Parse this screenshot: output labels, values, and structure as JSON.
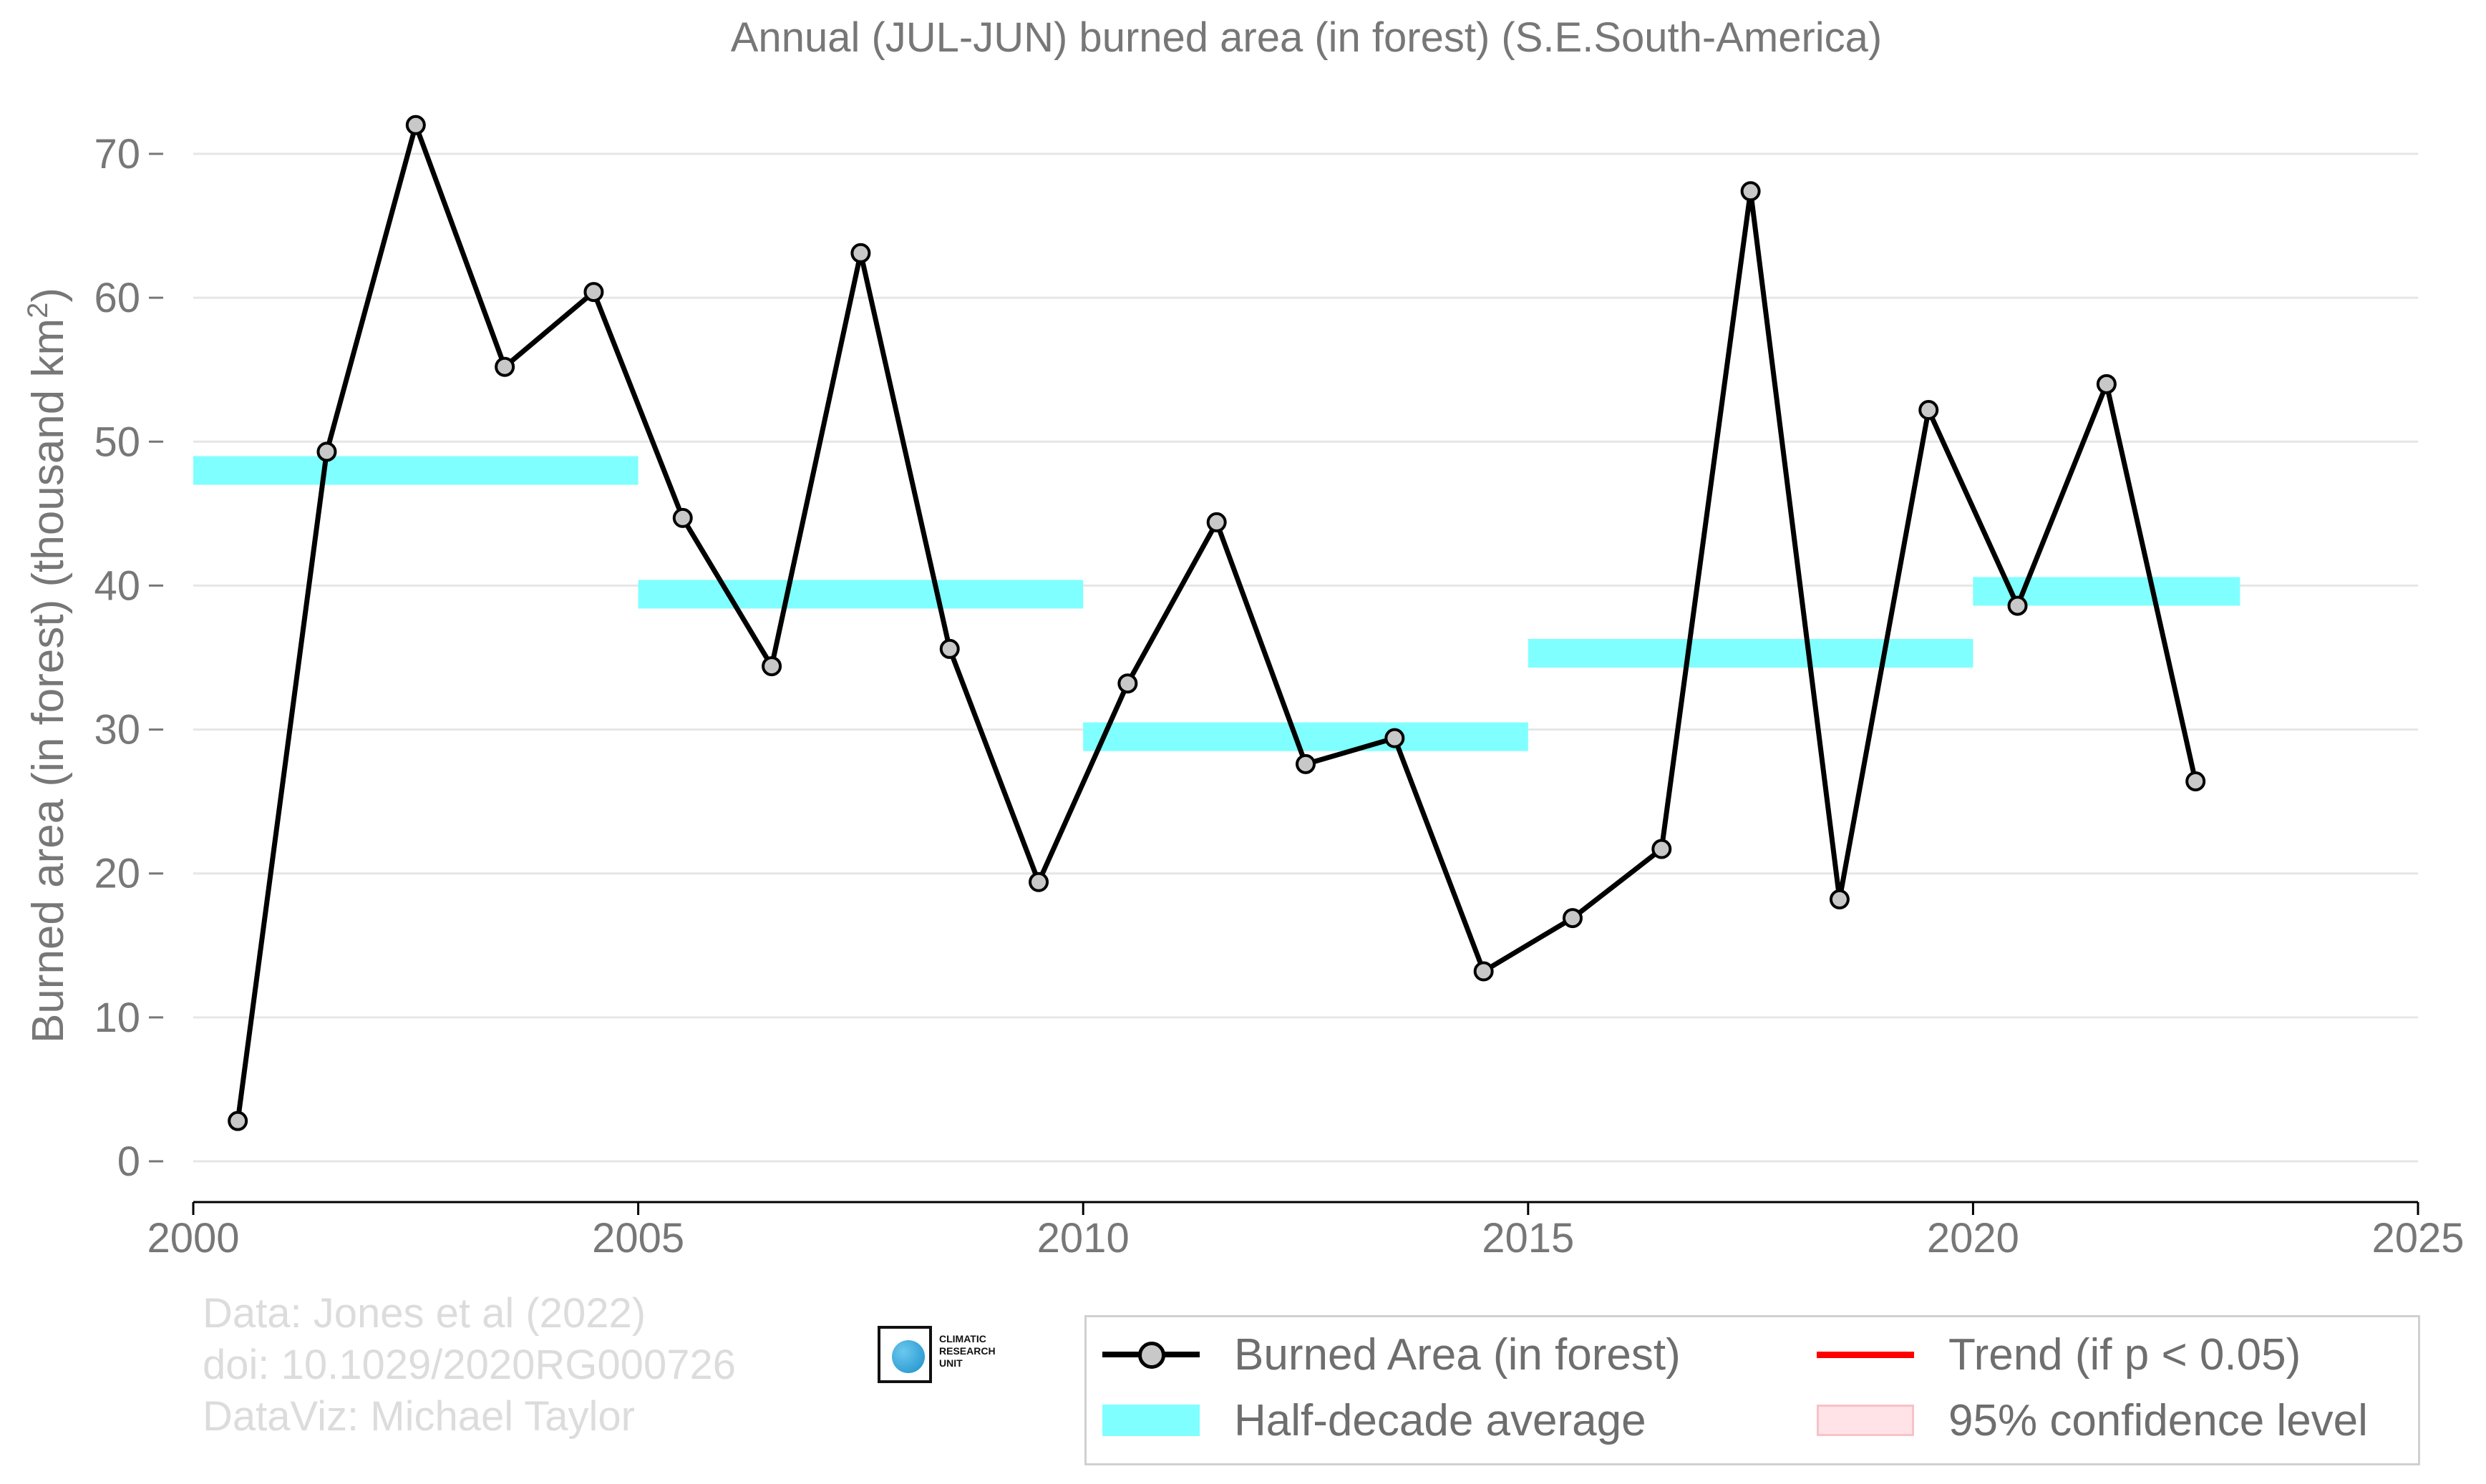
{
  "chart_data": {
    "type": "line",
    "title": "Annual (JUL-JUN) burned area (in forest) (S.E.South-America)",
    "xlabel": "",
    "ylabel": "Burned area (in forest) (thousand km",
    "ylabel_sup": "2",
    "ylabel_end": ")",
    "xlim": [
      2000,
      2025
    ],
    "ylim": [
      0,
      70
    ],
    "x_ticks": [
      2000,
      2005,
      2010,
      2015,
      2020,
      2025
    ],
    "y_ticks": [
      0,
      10,
      20,
      30,
      40,
      50,
      60,
      70
    ],
    "grid": "horizontal",
    "legend_position": "bottom-right",
    "series": [
      {
        "name": "Burned Area (in forest)",
        "color": "#000000",
        "marker_color": "#c8c8c8",
        "x": [
          2000.5,
          2001.5,
          2002.5,
          2003.5,
          2004.5,
          2005.5,
          2006.5,
          2007.5,
          2008.5,
          2009.5,
          2010.5,
          2011.5,
          2012.5,
          2013.5,
          2014.5,
          2015.5,
          2016.5,
          2017.5,
          2018.5,
          2019.5,
          2020.5,
          2021.5,
          2022.5
        ],
        "values": [
          2.8,
          49.3,
          72.0,
          55.2,
          60.4,
          44.7,
          34.4,
          63.1,
          35.6,
          19.4,
          33.2,
          44.4,
          27.6,
          29.4,
          13.2,
          16.9,
          21.7,
          67.4,
          18.2,
          52.2,
          38.6,
          54.0,
          26.4
        ]
      }
    ],
    "half_decade_average": {
      "name": "Half-decade average",
      "color": "#7fffff",
      "segments": [
        {
          "x_start": 2000,
          "x_end": 2005,
          "value": 48.0
        },
        {
          "x_start": 2005,
          "x_end": 2010,
          "value": 39.4
        },
        {
          "x_start": 2010,
          "x_end": 2015,
          "value": 29.5
        },
        {
          "x_start": 2015,
          "x_end": 2020,
          "value": 35.3
        },
        {
          "x_start": 2020,
          "x_end": 2023,
          "value": 39.6
        }
      ]
    },
    "legend": [
      {
        "label": "Burned Area (in forest)",
        "kind": "line-marker"
      },
      {
        "label": "Trend (if p < 0.05)",
        "kind": "line",
        "color": "#ff0000"
      },
      {
        "label": "Half-decade average",
        "kind": "band",
        "color": "#7fffff"
      },
      {
        "label": "95% confidence level",
        "kind": "band",
        "color": "#ffe3e6"
      }
    ]
  },
  "credits": {
    "line1": "Data: Jones et al (2022)",
    "line2": "doi: 10.1029/2020RG000726",
    "line3": "DataViz: Michael Taylor"
  },
  "logo": {
    "line1": "CLIMATIC",
    "line2": "RESEARCH",
    "line3": "UNIT"
  }
}
